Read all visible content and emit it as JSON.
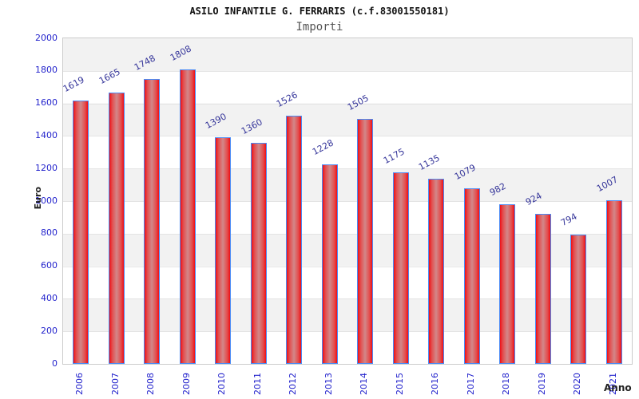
{
  "header": {
    "title": "ASILO INFANTILE G. FERRARIS (c.f.83001550181)",
    "subtitle": "Importi"
  },
  "axes": {
    "y_title": "Euro",
    "x_title": "Anno"
  },
  "chart_data": {
    "type": "bar",
    "title": "ASILO INFANTILE G. FERRARIS (c.f.83001550181)",
    "subtitle": "Importi",
    "xlabel": "Anno",
    "ylabel": "Euro",
    "categories": [
      "2006",
      "2007",
      "2008",
      "2009",
      "2010",
      "2011",
      "2012",
      "2013",
      "2014",
      "2015",
      "2016",
      "2017",
      "2018",
      "2019",
      "2020",
      "2021"
    ],
    "values": [
      1619,
      1665,
      1748,
      1808,
      1390,
      1360,
      1526,
      1228,
      1505,
      1175,
      1135,
      1079,
      982,
      924,
      794,
      1007
    ],
    "ylim": [
      0,
      2000
    ],
    "ytick_step": 200,
    "grid": "horizontal-bands",
    "legend": "none",
    "colors": {
      "bar_edge": "#ee0f16",
      "bar_center": "#d28789",
      "bar_border": "#4b8bf5",
      "value_label": "#333399",
      "tick_label": "#2222cc",
      "band_gray": "#f2f2f2",
      "band_white": "#ffffff",
      "plot_border": "#cccccc"
    }
  }
}
